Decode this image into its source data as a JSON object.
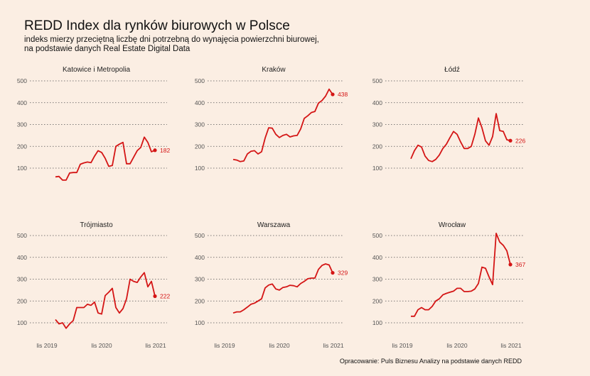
{
  "title": "REDD Index dla rynków biurowych w Polsce",
  "subtitle_line1": "indeks mierzy przeciętną liczbę dni potrzebną do wynajęcia powierzchni biurowej,",
  "subtitle_line2": "na podstawie danych Real Estate Digital Data",
  "caption": "Opracowanie: Puls Biznesu Analizy na podstawie danych REDD",
  "colors": {
    "series": "#d41515",
    "background": "#fbeee3"
  },
  "chart_data": {
    "type": "line",
    "x_tick_labels": [
      "lis 2019",
      "lis 2020",
      "lis 2021"
    ],
    "y_ticks": [
      100,
      200,
      300,
      400,
      500
    ],
    "ylim": [
      30,
      520
    ],
    "grid": true,
    "panels": [
      {
        "title": "Katowice i Metropolia",
        "end_label": "182",
        "values": [
          60,
          62,
          45,
          45,
          78,
          80,
          80,
          118,
          124,
          128,
          125,
          155,
          180,
          172,
          145,
          108,
          112,
          200,
          210,
          218,
          120,
          120,
          150,
          180,
          195,
          242,
          218,
          175,
          182
        ]
      },
      {
        "title": "Kraków",
        "end_label": "438",
        "values": [
          140,
          137,
          130,
          133,
          165,
          177,
          180,
          165,
          175,
          238,
          285,
          283,
          255,
          240,
          250,
          255,
          243,
          248,
          250,
          280,
          328,
          340,
          355,
          360,
          398,
          410,
          430,
          462,
          438
        ]
      },
      {
        "title": "Łódź",
        "end_label": "226",
        "values": [
          143,
          180,
          205,
          197,
          155,
          135,
          130,
          140,
          160,
          190,
          210,
          240,
          268,
          255,
          220,
          190,
          190,
          200,
          255,
          330,
          285,
          225,
          205,
          245,
          350,
          272,
          268,
          230,
          226
        ]
      },
      {
        "title": "Trójmiasto",
        "end_label": "222",
        "values": [
          115,
          95,
          100,
          75,
          95,
          110,
          170,
          170,
          170,
          185,
          180,
          195,
          145,
          140,
          225,
          240,
          258,
          170,
          145,
          165,
          210,
          300,
          290,
          285,
          310,
          330,
          265,
          290,
          222
        ]
      },
      {
        "title": "Warszawa",
        "end_label": "329",
        "values": [
          145,
          150,
          150,
          160,
          172,
          185,
          190,
          200,
          210,
          260,
          273,
          278,
          255,
          250,
          262,
          265,
          272,
          270,
          265,
          280,
          290,
          302,
          305,
          305,
          345,
          363,
          370,
          365,
          329
        ]
      },
      {
        "title": "Wrocław",
        "end_label": "367",
        "values": [
          130,
          130,
          160,
          170,
          160,
          160,
          175,
          200,
          210,
          228,
          235,
          240,
          245,
          258,
          258,
          243,
          243,
          245,
          255,
          280,
          355,
          350,
          310,
          275,
          510,
          470,
          455,
          430,
          367
        ]
      }
    ]
  }
}
